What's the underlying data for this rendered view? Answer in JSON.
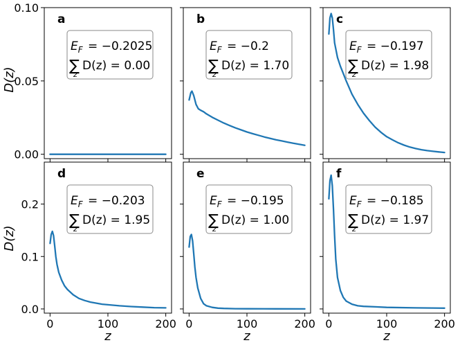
{
  "figure": {
    "ylabel_top": "D(z)",
    "ylabel_bottom": "D(z)",
    "xlabel": "z",
    "line_color": "#1f77b4"
  },
  "chart_data": [
    {
      "type": "line",
      "panel": "a",
      "row": 0,
      "col": 0,
      "xlabel": "",
      "ylabel": "D(z)",
      "xlim": [
        -10,
        210
      ],
      "ylim": [
        -0.003,
        0.1
      ],
      "xticks": [
        0,
        100,
        200
      ],
      "show_xticks": false,
      "yticks": [
        0.0,
        0.05,
        0.1
      ],
      "ytick_labels": [
        "0.00",
        "0.05",
        "0.10"
      ],
      "show_yticks": true,
      "annotation": {
        "ef_label": "E",
        "ef_sub": "F",
        "ef_value": "= −0.2025",
        "sum_label": "D(z) = 0.00",
        "sum_index": "z"
      },
      "x": [
        0,
        200
      ],
      "y": [
        0.0,
        0.0
      ]
    },
    {
      "type": "line",
      "panel": "b",
      "row": 0,
      "col": 1,
      "xlabel": "",
      "ylabel": "",
      "xlim": [
        -10,
        210
      ],
      "ylim": [
        -0.003,
        0.1
      ],
      "xticks": [
        0,
        100,
        200
      ],
      "show_xticks": false,
      "yticks": [
        0.0,
        0.05,
        0.1
      ],
      "show_yticks": false,
      "annotation": {
        "ef_label": "E",
        "ef_sub": "F",
        "ef_value": "= −0.2",
        "sum_label": "D(z) = 1.70",
        "sum_index": "z"
      },
      "x": [
        0,
        3,
        5,
        8,
        12,
        16,
        20,
        25,
        30,
        40,
        50,
        60,
        70,
        80,
        90,
        100,
        110,
        120,
        130,
        140,
        150,
        160,
        170,
        180,
        190,
        200
      ],
      "y": [
        0.037,
        0.042,
        0.043,
        0.04,
        0.034,
        0.031,
        0.03,
        0.029,
        0.0275,
        0.0252,
        0.0232,
        0.0213,
        0.0196,
        0.018,
        0.0166,
        0.0152,
        0.014,
        0.0129,
        0.0118,
        0.0108,
        0.0099,
        0.0091,
        0.0083,
        0.0075,
        0.0068,
        0.0061
      ]
    },
    {
      "type": "line",
      "panel": "c",
      "row": 0,
      "col": 2,
      "xlabel": "",
      "ylabel": "",
      "xlim": [
        -10,
        210
      ],
      "ylim": [
        -0.003,
        0.1
      ],
      "xticks": [
        0,
        100,
        200
      ],
      "show_xticks": false,
      "yticks": [
        0.0,
        0.05,
        0.1
      ],
      "show_yticks": false,
      "annotation": {
        "ef_label": "E",
        "ef_sub": "F",
        "ef_value": "= −0.197",
        "sum_label": "D(z) = 1.98",
        "sum_index": "z"
      },
      "x": [
        0,
        2,
        4,
        6,
        8,
        10,
        15,
        20,
        25,
        30,
        40,
        50,
        60,
        70,
        80,
        90,
        100,
        110,
        120,
        130,
        140,
        150,
        160,
        170,
        180,
        190,
        200
      ],
      "y": [
        0.082,
        0.093,
        0.096,
        0.093,
        0.085,
        0.076,
        0.066,
        0.06,
        0.055,
        0.05,
        0.041,
        0.034,
        0.028,
        0.023,
        0.0185,
        0.015,
        0.012,
        0.0098,
        0.0078,
        0.0062,
        0.0049,
        0.0039,
        0.0031,
        0.0025,
        0.002,
        0.0016,
        0.0012
      ]
    },
    {
      "type": "line",
      "panel": "d",
      "row": 1,
      "col": 0,
      "xlabel": "z",
      "ylabel": "D(z)",
      "xlim": [
        -10,
        210
      ],
      "ylim": [
        -0.008,
        0.28
      ],
      "xticks": [
        0,
        100,
        200
      ],
      "xtick_labels": [
        "0",
        "100",
        "200"
      ],
      "show_xticks": true,
      "yticks": [
        0.0,
        0.1,
        0.2
      ],
      "ytick_labels": [
        "0.0",
        "0.1",
        "0.2"
      ],
      "show_yticks": true,
      "annotation": {
        "ef_label": "E",
        "ef_sub": "F",
        "ef_value": "= −0.203",
        "sum_label": "D(z) = 1.95",
        "sum_index": "z"
      },
      "x": [
        0,
        2,
        4,
        6,
        8,
        10,
        12,
        15,
        20,
        25,
        30,
        40,
        50,
        60,
        70,
        80,
        90,
        100,
        120,
        140,
        160,
        180,
        200
      ],
      "y": [
        0.125,
        0.142,
        0.148,
        0.14,
        0.12,
        0.1,
        0.085,
        0.07,
        0.055,
        0.044,
        0.037,
        0.027,
        0.02,
        0.016,
        0.013,
        0.011,
        0.009,
        0.008,
        0.006,
        0.0045,
        0.0035,
        0.0025,
        0.002
      ]
    },
    {
      "type": "line",
      "panel": "e",
      "row": 1,
      "col": 1,
      "xlabel": "z",
      "ylabel": "",
      "xlim": [
        -10,
        210
      ],
      "ylim": [
        -0.008,
        0.28
      ],
      "xticks": [
        0,
        100,
        200
      ],
      "xtick_labels": [
        "0",
        "100",
        "200"
      ],
      "show_xticks": true,
      "yticks": [
        0.0,
        0.1,
        0.2
      ],
      "show_yticks": false,
      "annotation": {
        "ef_label": "E",
        "ef_sub": "F",
        "ef_value": "= −0.195",
        "sum_label": "D(z) = 1.00",
        "sum_index": "z"
      },
      "x": [
        0,
        2,
        4,
        6,
        8,
        10,
        12,
        15,
        20,
        25,
        30,
        40,
        50,
        60,
        80,
        100,
        150,
        200
      ],
      "y": [
        0.118,
        0.138,
        0.142,
        0.13,
        0.105,
        0.08,
        0.06,
        0.04,
        0.02,
        0.01,
        0.006,
        0.003,
        0.0015,
        0.001,
        0.0005,
        0.0003,
        0.0002,
        0.0001
      ]
    },
    {
      "type": "line",
      "panel": "f",
      "row": 1,
      "col": 2,
      "xlabel": "z",
      "ylabel": "",
      "xlim": [
        -10,
        210
      ],
      "ylim": [
        -0.008,
        0.28
      ],
      "xticks": [
        0,
        100,
        200
      ],
      "xtick_labels": [
        "0",
        "100",
        "200"
      ],
      "show_xticks": true,
      "yticks": [
        0.0,
        0.1,
        0.2
      ],
      "show_yticks": false,
      "annotation": {
        "ef_label": "E",
        "ef_sub": "F",
        "ef_value": "= −0.185",
        "sum_label": "D(z) = 1.97",
        "sum_index": "z"
      },
      "x": [
        0,
        2,
        4,
        6,
        8,
        10,
        12,
        15,
        20,
        25,
        30,
        40,
        50,
        60,
        80,
        100,
        150,
        200
      ],
      "y": [
        0.21,
        0.245,
        0.255,
        0.235,
        0.19,
        0.14,
        0.095,
        0.06,
        0.035,
        0.022,
        0.015,
        0.009,
        0.006,
        0.005,
        0.004,
        0.003,
        0.002,
        0.0015
      ]
    }
  ]
}
